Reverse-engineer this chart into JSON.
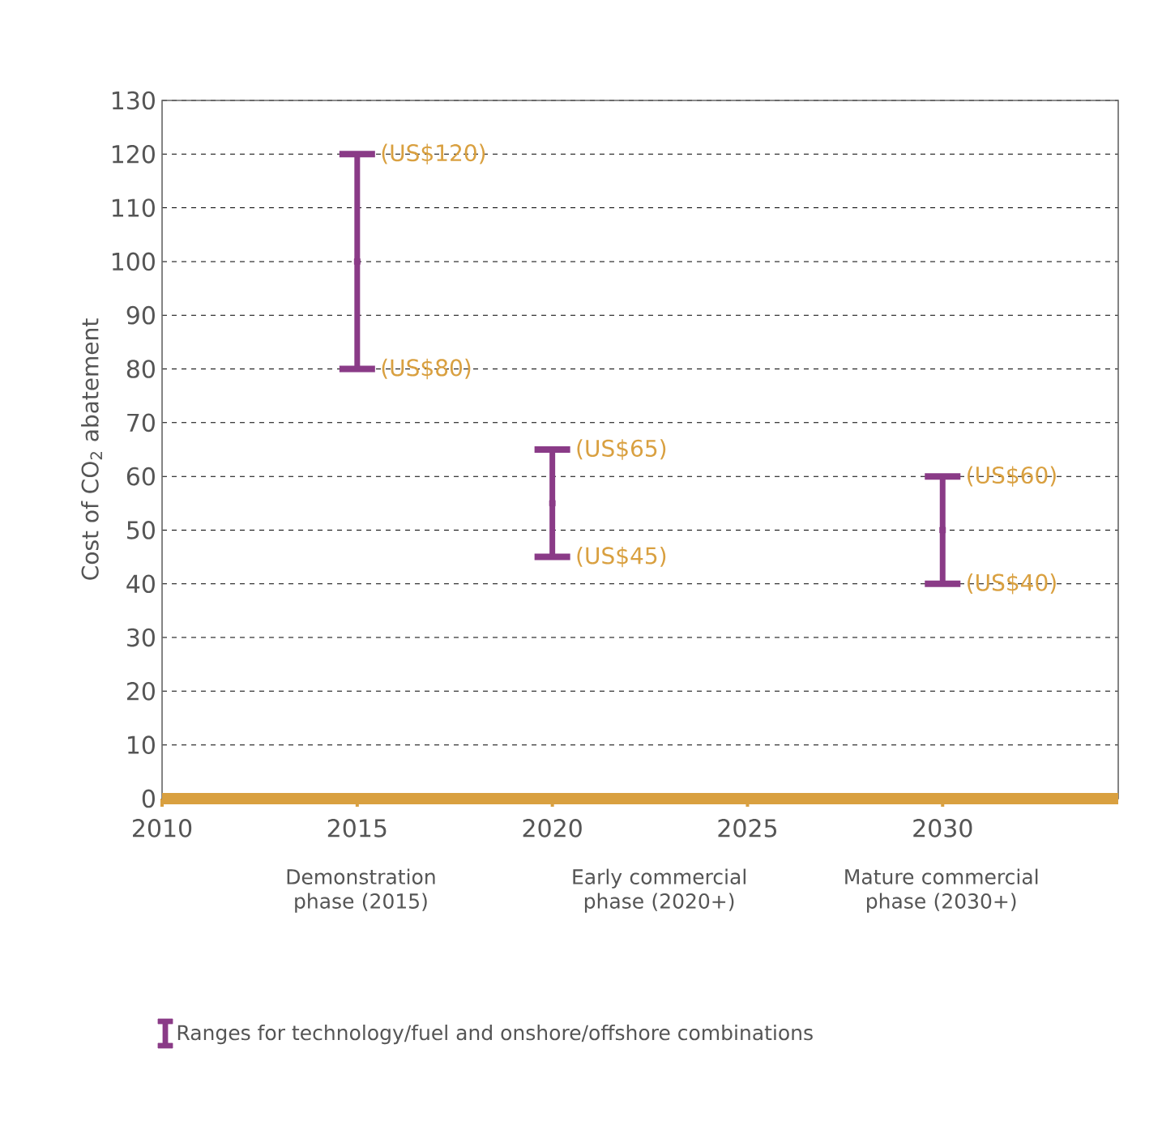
{
  "chart_data": {
    "type": "scatter",
    "ylabel": "Cost of CO$_{2}$ abatement",
    "x": [
      2015,
      2020,
      2030
    ],
    "series": [
      {
        "name": "Ranges for technology/fuel and onshore/offshore combinations",
        "color": "#8a3b87",
        "values": [
          100,
          55,
          50
        ],
        "errors": [
          20,
          10,
          10
        ]
      }
    ],
    "marker": "square",
    "xlim": [
      2010,
      2034.5
    ],
    "ylim": [
      0,
      130
    ],
    "xticks": [
      2010,
      2015,
      2020,
      2025,
      2030
    ],
    "yticks": [
      0,
      10,
      20,
      30,
      40,
      50,
      60,
      70,
      80,
      90,
      100,
      110,
      120,
      130
    ],
    "grid": "y",
    "legend": "bottom",
    "annotations": [
      "(US$120)",
      "(US$80)",
      "(US$65)",
      "(US$45)",
      "(US$60)",
      "(US$40)",
      "Demonstration phase (2015)",
      "Early commercial phase (2020+)",
      "Mature commercial phase (2030+)"
    ]
  }
}
